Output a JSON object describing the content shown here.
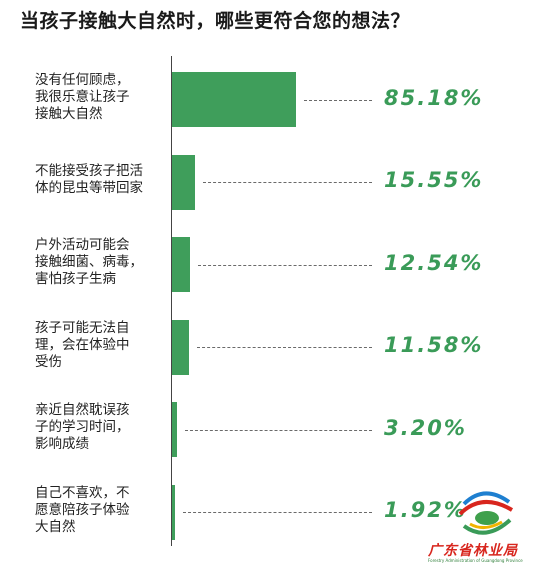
{
  "chart_data": {
    "type": "bar",
    "orientation": "horizontal",
    "title": "当孩子接触大自然时，哪些更符合您的想法？",
    "categories": [
      [
        "没有任何顾虑，",
        "我很乐意让孩子",
        "接触大自然"
      ],
      [
        "不能接受孩子把活",
        "体的昆虫等带回家"
      ],
      [
        "户外活动可能会",
        "接触细菌、病毒，",
        "害怕孩子生病"
      ],
      [
        "孩子可能无法自",
        "理，会在体验中",
        "受伤"
      ],
      [
        "亲近自然耽误孩",
        "子的学习时间，",
        "影响成绩"
      ],
      [
        "自己不喜欢，不",
        "愿意陪孩子体验",
        "大自然"
      ]
    ],
    "values": [
      85.18,
      15.55,
      12.54,
      11.58,
      3.2,
      1.92
    ],
    "value_labels": [
      "85.18%",
      "15.55%",
      "12.54%",
      "11.58%",
      "3.20%",
      "1.92%"
    ],
    "xlim": [
      0,
      100
    ],
    "bar_color": "#3f9e5b",
    "label_color": "#3a9b58"
  },
  "logo": {
    "name": "广东省林业局",
    "subtitle": "Forestry Administration of Guangdong Province"
  }
}
